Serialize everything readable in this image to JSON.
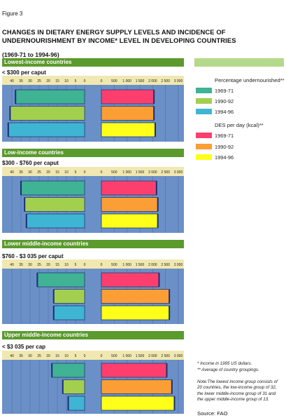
{
  "figure_label": "Figure 3",
  "title_line1": "CHANGES IN DIETARY ENERGY SUPPLY LEVELS AND INCIDENCE OF",
  "title_line2": "UNDERNOURISHMENT BY INCOME* LEVEL IN DEVELOPING COUNTRIES",
  "period": "(1969-71 to 1994-96)",
  "legend": {
    "undernourished_title": "Percentage undernourished**",
    "des_title": "DES per day (kcal)**",
    "items_pct": [
      {
        "label": "1969-71",
        "color": "#3fb394"
      },
      {
        "label": "1990-92",
        "color": "#a3cf4f"
      },
      {
        "label": "1994-96",
        "color": "#3fb5d4"
      }
    ],
    "items_des": [
      {
        "label": "1969-71",
        "color": "#fd3f6e"
      },
      {
        "label": "1990-92",
        "color": "#fb9e35"
      },
      {
        "label": "1994-96",
        "color": "#ffff1a"
      }
    ]
  },
  "footnotes": {
    "income_note": "*   Income in 1995 US dollars.",
    "average_note": "** Average of country groupings.",
    "note_line1": "Note:The lowest income group consists of",
    "note_line2": "20 countries, the low-income group of 32,",
    "note_line3": "the lower middle-income group of 31 and",
    "note_line4": "the upper middle-income group of 13."
  },
  "source": "Source:  FAO",
  "chart_data": [
    {
      "type": "bar",
      "group": "Lowest-income countries",
      "income_range": "< $300 per caput",
      "series": [
        {
          "name": "Percentage undernourished",
          "categories": [
            "1969-71",
            "1990-92",
            "1994-96"
          ],
          "values": [
            38,
            41,
            42
          ]
        },
        {
          "name": "DES per day (kcal)",
          "categories": [
            "1969-71",
            "1990-92",
            "1994-96"
          ],
          "values": [
            2050,
            2050,
            2100
          ]
        }
      ]
    },
    {
      "type": "bar",
      "group": "Low-income countries",
      "income_range": "$300 - $760 per caput",
      "series": [
        {
          "name": "Percentage undernourished",
          "categories": [
            "1969-71",
            "1990-92",
            "1994-96"
          ],
          "values": [
            35,
            33,
            32
          ]
        },
        {
          "name": "DES per day (kcal)",
          "categories": [
            "1969-71",
            "1990-92",
            "1994-96"
          ],
          "values": [
            2150,
            2200,
            2200
          ]
        }
      ]
    },
    {
      "type": "bar",
      "group": "Lower middle-income countries",
      "income_range": "$760 - $3 035 per caput",
      "series": [
        {
          "name": "Percentage undernourished",
          "categories": [
            "1969-71",
            "1990-92",
            "1994-96"
          ],
          "values": [
            26,
            17,
            17
          ]
        },
        {
          "name": "DES per day (kcal)",
          "categories": [
            "1969-71",
            "1990-92",
            "1994-96"
          ],
          "values": [
            2250,
            2650,
            2650
          ]
        }
      ]
    },
    {
      "type": "bar",
      "group": "Upper middle-income countries",
      "income_range": "< $3 035 per cap",
      "series": [
        {
          "name": "Percentage undernourished",
          "categories": [
            "1969-71",
            "1990-92",
            "1994-96"
          ],
          "values": [
            18,
            12,
            9
          ]
        },
        {
          "name": "DES per day (kcal)",
          "categories": [
            "1969-71",
            "1990-92",
            "1994-96"
          ],
          "values": [
            2550,
            2750,
            2850
          ]
        }
      ]
    }
  ],
  "axes": {
    "pct_ticks": [
      "40",
      "35",
      "30",
      "25",
      "20",
      "15",
      "10",
      "5",
      "0"
    ],
    "des_ticks": [
      "0",
      "500",
      "1 000",
      "1 500",
      "2 000",
      "2 500",
      "3 000"
    ],
    "pct_range": [
      0,
      40
    ],
    "des_range": [
      0,
      3000
    ]
  }
}
